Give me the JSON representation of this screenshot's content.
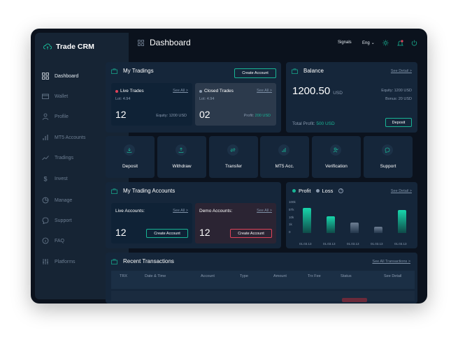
{
  "app": {
    "brand": "Trade CRM",
    "page_title": "Dashboard"
  },
  "colors": {
    "accent": "#18b595",
    "loss": "#e0435a",
    "bg": "#0b121d",
    "card": "#15263a"
  },
  "sidebar": {
    "items": [
      {
        "label": "Dashboard",
        "icon": "grid-icon",
        "active": true
      },
      {
        "label": "Wallet",
        "icon": "wallet-icon"
      },
      {
        "label": "Profile",
        "icon": "user-icon",
        "caret": true
      },
      {
        "label": "MT5 Accounts",
        "icon": "bar-chart-icon"
      },
      {
        "label": "Tradings",
        "icon": "trend-icon"
      },
      {
        "label": "Invest",
        "icon": "dollar-icon",
        "caret": true
      },
      {
        "label": "Manage",
        "icon": "pie-icon",
        "caret": true
      },
      {
        "label": "Support",
        "icon": "chat-icon"
      },
      {
        "label": "FAQ",
        "icon": "help-icon"
      },
      {
        "label": "Platforms",
        "icon": "sliders-icon"
      }
    ]
  },
  "topbar": {
    "signals": "Signals",
    "language": "Eng"
  },
  "my_tradings": {
    "title": "My Tradings",
    "create_button": "Create Account",
    "live": {
      "label": "Live Trades",
      "see_all": "See All >",
      "lot": "Lot: 4.94",
      "count": "12",
      "meta": "Equity: 1200 USD"
    },
    "closed": {
      "label": "Closed Trades",
      "see_all": "See All >",
      "lot": "Lot: 4.94",
      "count": "02",
      "meta_label": "Profit:",
      "meta_value": "200 USD"
    }
  },
  "balance": {
    "title": "Balance",
    "see_detail": "See Detail >",
    "amount": "1200.50",
    "currency": "USD",
    "equity": "Equity: 1200 USD",
    "bonus": "Bonus: 20 USD",
    "total_label": "Total Profit:",
    "total_value": "500 USD",
    "deposit_button": "Deposit"
  },
  "actions": [
    {
      "label": "Deposit",
      "icon": "download-icon"
    },
    {
      "label": "Withdraw",
      "icon": "upload-icon"
    },
    {
      "label": "Transfer",
      "icon": "transfer-icon"
    },
    {
      "label": "MT5 Acc.",
      "icon": "bar-chart-icon"
    },
    {
      "label": "Verification",
      "icon": "user-check-icon"
    },
    {
      "label": "Support",
      "icon": "chat-icon"
    }
  ],
  "trading_accounts": {
    "title": "My Trading Accounts",
    "live": {
      "label": "Live Accounts:",
      "see_all": "See All >",
      "count": "12",
      "button": "Create Account"
    },
    "demo": {
      "label": "Demo Accounts:",
      "see_all": "See All >",
      "count": "12",
      "button": "Create Account"
    }
  },
  "profit_loss": {
    "profit_label": "Profit",
    "loss_label": "Loss",
    "see_detail": "See Detail >"
  },
  "chart_data": {
    "type": "bar",
    "y_ticks": [
      "100k",
      "5Tk",
      "10k",
      "1k",
      "0"
    ],
    "categories": [
      "01.03.13",
      "01.03.13",
      "01.03.13",
      "01.03.13",
      "01.03.13"
    ],
    "series": [
      {
        "name": "Profit",
        "values": [
          84,
          55,
          null,
          null,
          76
        ]
      },
      {
        "name": "Loss",
        "values": [
          null,
          null,
          34,
          22,
          null
        ]
      }
    ],
    "ylim": [
      0,
      100
    ],
    "colors": [
      "profit",
      "profit",
      "loss",
      "profit",
      "profit"
    ]
  },
  "transactions": {
    "title": "Recent Transactions",
    "see_all": "See All Transactions >",
    "columns": [
      "TRX",
      "Date & Time",
      "Account",
      "Type",
      "Amount",
      "Trx Fee",
      "Status",
      "See Detail"
    ]
  }
}
